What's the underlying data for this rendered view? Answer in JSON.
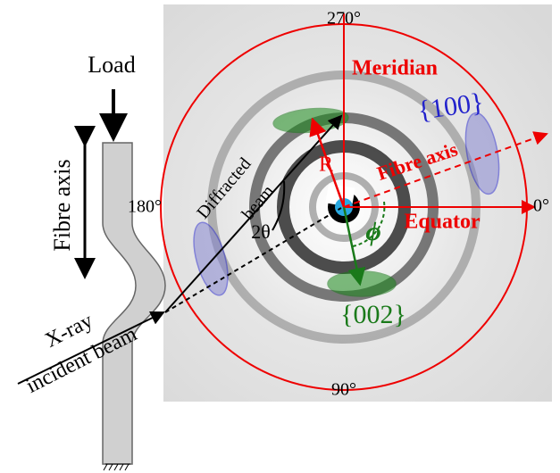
{
  "labels": {
    "load": "Load",
    "fibre_axis_left": "Fibre axis",
    "xray": "X-ray",
    "incident_beam": "incident beam",
    "diffracted": "Diffracted",
    "beam": "beam",
    "two_theta": "2θ",
    "deg_180": "180°",
    "deg_270": "270°",
    "meridian": "Meridian",
    "plane_100": "{100}",
    "r": "R",
    "fibre_axis_right": "Fibre axis",
    "deg_0": "0°",
    "equator": "Equator",
    "phi": "ϕ",
    "plane_002": "{002}",
    "deg_90": "90°"
  }
}
